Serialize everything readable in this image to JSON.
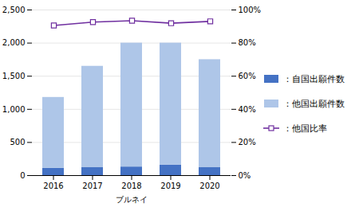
{
  "chart_data": {
    "type": "bar",
    "stacked": true,
    "categories": [
      "2016",
      "2017",
      "2018",
      "2019",
      "2020"
    ],
    "series": [
      {
        "name": "：自国出願件数",
        "color": "#4472c4",
        "values": [
          110,
          120,
          130,
          160,
          120
        ]
      },
      {
        "name": "：他国出願件数",
        "color": "#aec6e8",
        "values": [
          1070,
          1530,
          1870,
          1840,
          1630
        ]
      },
      {
        "name": "：他国比率",
        "type": "line",
        "axis": "y2",
        "color": "#7030a0",
        "marker": "square",
        "values": [
          0.906,
          0.927,
          0.935,
          0.92,
          0.931
        ]
      }
    ],
    "xlabel": "ブルネイ",
    "ylim": [
      0,
      2500
    ],
    "yticks": [
      0,
      500,
      {
        "value": 1000,
        "label": "1,000"
      },
      {
        "value": 1500,
        "label": "1,500"
      },
      {
        "value": 2000,
        "label": "2,000"
      },
      {
        "value": 2500,
        "label": "2,500"
      }
    ],
    "y2lim": [
      0,
      1.0
    ],
    "y2ticks": [
      {
        "value": 0.0,
        "label": "0%"
      },
      {
        "value": 0.2,
        "label": "20%"
      },
      {
        "value": 0.4,
        "label": "40%"
      },
      {
        "value": 0.6,
        "label": "60%"
      },
      {
        "value": 0.8,
        "label": "80%"
      },
      {
        "value": 1.0,
        "label": "100%"
      }
    ],
    "grid": true,
    "legend": "right"
  }
}
